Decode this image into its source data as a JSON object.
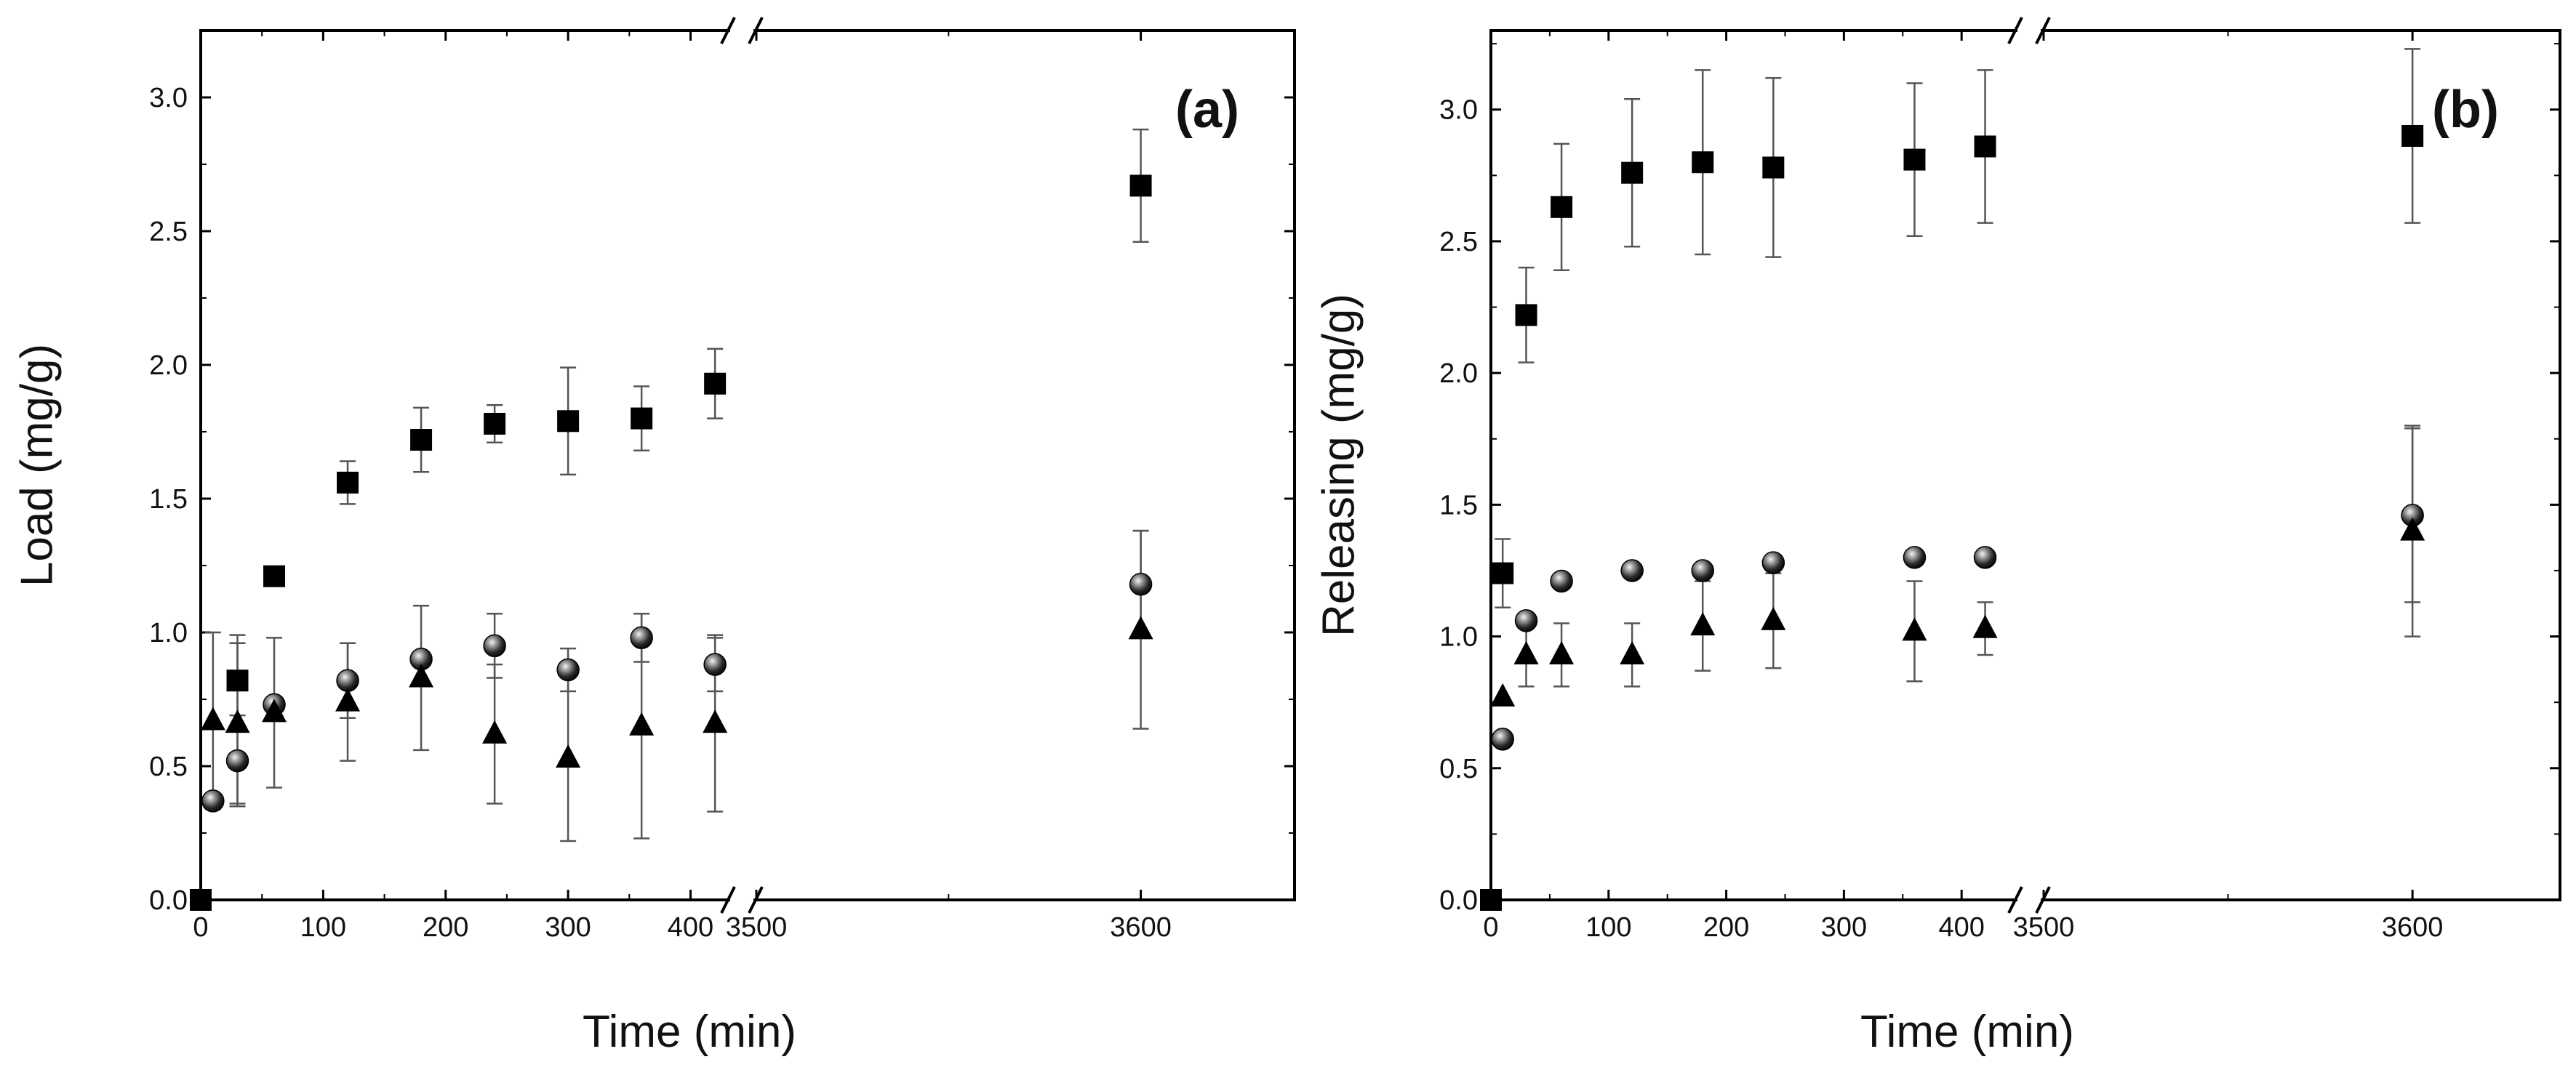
{
  "chart_data": [
    {
      "type": "scatter",
      "panel_label": "(a)",
      "xlabel": "Time (min)",
      "ylabel": "Load (mg/g)",
      "x_break": {
        "segment1": [
          0,
          430
        ],
        "segment2": [
          3500,
          3640
        ]
      },
      "xticks_left": [
        "0",
        "100",
        "200",
        "300",
        "400"
      ],
      "xticks_right": [
        "3500",
        "3600"
      ],
      "ylim": [
        0,
        3.25
      ],
      "yticks": [
        "0.0",
        "0.5",
        "1.0",
        "1.5",
        "2.0",
        "2.5",
        "3.0"
      ],
      "grid": false,
      "series": [
        {
          "name": "square",
          "marker": "square",
          "x": [
            0,
            30,
            60,
            120,
            180,
            240,
            300,
            360,
            420,
            3600
          ],
          "y": [
            0.0,
            0.82,
            1.21,
            1.56,
            1.72,
            1.78,
            1.79,
            1.8,
            1.93,
            2.67
          ],
          "err": [
            0.0,
            0.17,
            0.0,
            0.08,
            0.12,
            0.07,
            0.2,
            0.12,
            0.13,
            0.21
          ]
        },
        {
          "name": "sphere",
          "marker": "sphere",
          "x": [
            10,
            30,
            60,
            120,
            180,
            240,
            300,
            360,
            420,
            3600
          ],
          "y": [
            0.37,
            0.52,
            0.73,
            0.82,
            0.9,
            0.95,
            0.86,
            0.98,
            0.88,
            1.18
          ],
          "err": [
            0.0,
            0.17,
            0.0,
            0.14,
            0.0,
            0.12,
            0.08,
            0.09,
            0.1,
            0.2
          ]
        },
        {
          "name": "triangle",
          "marker": "triangle",
          "x": [
            10,
            30,
            60,
            120,
            180,
            240,
            300,
            360,
            420,
            3600
          ],
          "y": [
            0.67,
            0.66,
            0.7,
            0.74,
            0.83,
            0.62,
            0.53,
            0.65,
            0.66,
            1.01
          ],
          "err": [
            0.33,
            0.3,
            0.28,
            0.22,
            0.27,
            0.26,
            0.31,
            0.42,
            0.33,
            0.37
          ]
        }
      ]
    },
    {
      "type": "scatter",
      "panel_label": "(b)",
      "xlabel": "Time (min)",
      "ylabel": "Releasing (mg/g)",
      "x_break": {
        "segment1": [
          0,
          445
        ],
        "segment2": [
          3500,
          3640
        ]
      },
      "xticks_left": [
        "0",
        "100",
        "200",
        "300",
        "400"
      ],
      "xticks_right": [
        "3500",
        "3600"
      ],
      "ylim": [
        0,
        3.3
      ],
      "yticks": [
        "0.0",
        "0.5",
        "1.0",
        "1.5",
        "2.0",
        "2.5",
        "3.0"
      ],
      "grid": false,
      "series": [
        {
          "name": "square",
          "marker": "square",
          "x": [
            0,
            10,
            30,
            60,
            120,
            180,
            240,
            360,
            420,
            3600
          ],
          "y": [
            0.0,
            1.24,
            2.22,
            2.63,
            2.76,
            2.8,
            2.78,
            2.81,
            2.86,
            2.9
          ],
          "err": [
            0.0,
            0.13,
            0.18,
            0.24,
            0.28,
            0.35,
            0.34,
            0.29,
            0.29,
            0.33
          ]
        },
        {
          "name": "sphere",
          "marker": "sphere",
          "x": [
            10,
            30,
            60,
            120,
            180,
            240,
            360,
            420,
            3600
          ],
          "y": [
            0.61,
            1.06,
            1.21,
            1.25,
            1.25,
            1.28,
            1.3,
            1.3,
            1.46
          ],
          "err": [
            0.0,
            0.0,
            0.0,
            0.0,
            0.0,
            0.0,
            0.0,
            0.0,
            0.33
          ]
        },
        {
          "name": "triangle",
          "marker": "triangle",
          "x": [
            10,
            30,
            60,
            120,
            180,
            240,
            360,
            420,
            3600
          ],
          "y": [
            0.77,
            0.93,
            0.93,
            0.93,
            1.04,
            1.06,
            1.02,
            1.03,
            1.4
          ],
          "err": [
            0.0,
            0.12,
            0.12,
            0.12,
            0.17,
            0.18,
            0.19,
            0.1,
            0.4
          ]
        }
      ]
    }
  ]
}
